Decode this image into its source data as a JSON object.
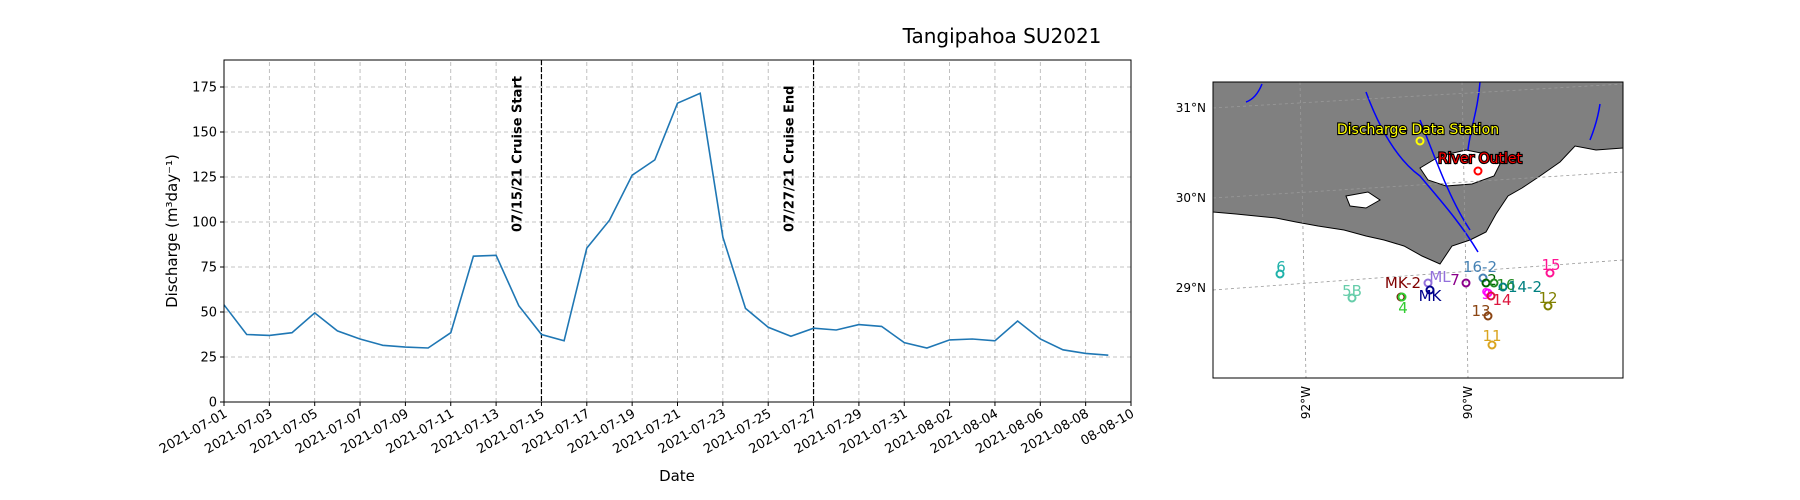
{
  "chart_data": [
    {
      "type": "line",
      "title": "Tangipahoa SU2021",
      "xlabel": "Date",
      "ylabel": "Discharge (m³day⁻¹)",
      "ylim": [
        0,
        190
      ],
      "yticks": [
        0,
        25,
        50,
        75,
        100,
        125,
        150,
        175
      ],
      "xlim": [
        "2021-07-01",
        "2021-08-10"
      ],
      "xticks": [
        "2021-07-01",
        "2021-07-03",
        "2021-07-05",
        "2021-07-07",
        "2021-07-09",
        "2021-07-11",
        "2021-07-13",
        "2021-07-15",
        "2021-07-17",
        "2021-07-19",
        "2021-07-21",
        "2021-07-23",
        "2021-07-25",
        "2021-07-27",
        "2021-07-29",
        "2021-07-31",
        "2021-08-02",
        "2021-08-04",
        "2021-08-06",
        "2021-08-08",
        "08-08-10"
      ],
      "grid": true,
      "line_color": "#1f77b4",
      "series": [
        {
          "x": [
            "2021-07-01",
            "2021-07-02",
            "2021-07-03",
            "2021-07-04",
            "2021-07-05",
            "2021-07-06",
            "2021-07-07",
            "2021-07-08",
            "2021-07-09",
            "2021-07-10",
            "2021-07-11",
            "2021-07-12",
            "2021-07-13",
            "2021-07-14",
            "2021-07-15",
            "2021-07-16",
            "2021-07-17",
            "2021-07-18",
            "2021-07-19",
            "2021-07-20",
            "2021-07-21",
            "2021-07-22",
            "2021-07-23",
            "2021-07-24",
            "2021-07-25",
            "2021-07-26",
            "2021-07-27",
            "2021-07-28",
            "2021-07-29",
            "2021-07-30",
            "2021-07-31",
            "2021-08-01",
            "2021-08-02",
            "2021-08-03",
            "2021-08-04",
            "2021-08-05",
            "2021-08-06",
            "2021-08-07",
            "2021-08-08",
            "2021-08-09"
          ],
          "values": [
            54,
            37.5,
            37,
            38.5,
            49.5,
            39.5,
            35,
            31.5,
            30.5,
            30,
            38.5,
            81,
            81.5,
            53.5,
            37.5,
            34,
            85.5,
            101,
            126,
            134.5,
            166,
            171.5,
            91.5,
            52,
            41.5,
            36.5,
            41,
            40,
            43,
            42,
            33,
            30,
            34.5,
            35,
            34,
            45,
            35,
            29,
            27,
            26
          ]
        }
      ],
      "vlines": [
        {
          "x": "2021-07-15",
          "label": "07/15/21 Cruise Start"
        },
        {
          "x": "2021-07-27",
          "label": "07/27/21 Cruise End"
        }
      ]
    },
    {
      "type": "map",
      "land_color": "#808080",
      "river_color": "#0000ff",
      "lat_ticks": [
        "31°N",
        "30°N",
        "29°N"
      ],
      "lon_ticks": [
        "92°W",
        "90°W"
      ],
      "special": [
        {
          "name": "Discharge Data Station",
          "color": "#ffff00",
          "lon": -90.5,
          "lat": 30.5
        },
        {
          "name": "River Outlet",
          "color": "#ff0000",
          "lon": -90.15,
          "lat": 30.3
        }
      ],
      "stations": [
        {
          "name": "6",
          "color": "#20b2aa"
        },
        {
          "name": "5B",
          "color": "#66cdaa"
        },
        {
          "name": "MK-2",
          "color": "#800000"
        },
        {
          "name": "4",
          "color": "#32cd32"
        },
        {
          "name": "ML",
          "color": "#9370db"
        },
        {
          "name": "7",
          "color": "#8b008b"
        },
        {
          "name": "MK",
          "color": "#00008b"
        },
        {
          "name": "16-2",
          "color": "#4682b4"
        },
        {
          "name": "2",
          "color": "#006400"
        },
        {
          "name": "9",
          "color": "#ff00ff"
        },
        {
          "name": "16",
          "color": "#228b22"
        },
        {
          "name": "14",
          "color": "#dc143c"
        },
        {
          "name": "14-2",
          "color": "#008080"
        },
        {
          "name": "15",
          "color": "#ff1493"
        },
        {
          "name": "13",
          "color": "#8b4513"
        },
        {
          "name": "12",
          "color": "#808000"
        },
        {
          "name": "11",
          "color": "#daa520"
        }
      ]
    }
  ]
}
